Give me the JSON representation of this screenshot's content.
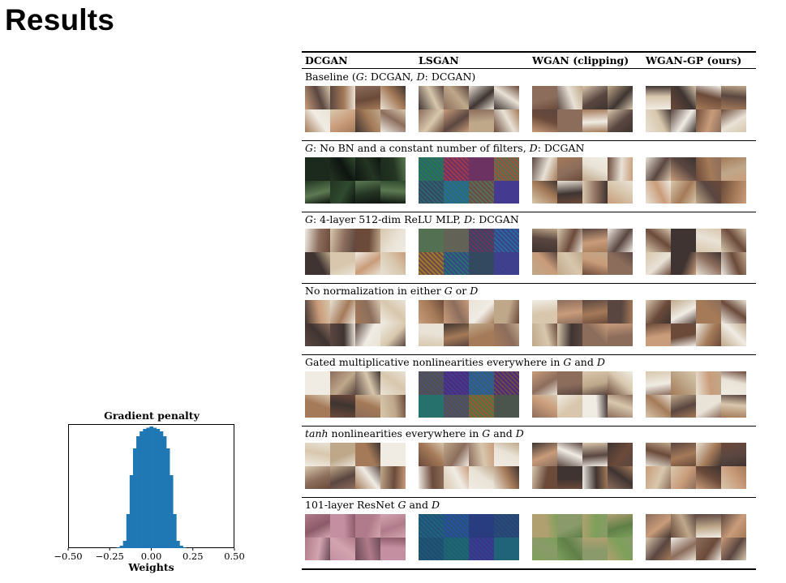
{
  "slide": {
    "title": "Results"
  },
  "histogram": {
    "title": "Gradient penalty",
    "xlabel": "Weights",
    "tick_labels": [
      "−0.50",
      "−0.25",
      "0.00",
      "0.25",
      "0.50"
    ],
    "color": "#1f77b4"
  },
  "chart_data": {
    "type": "bar",
    "title": "Gradient penalty",
    "xlabel": "Weights",
    "ylabel": "",
    "xlim": [
      -0.5,
      0.5
    ],
    "xticks": [
      -0.5,
      -0.25,
      0.0,
      0.25,
      0.5
    ],
    "bin_centers": [
      -0.2,
      -0.18,
      -0.16,
      -0.14,
      -0.12,
      -0.1,
      -0.08,
      -0.06,
      -0.04,
      -0.02,
      0.0,
      0.02,
      0.04,
      0.06,
      0.08,
      0.1,
      0.12,
      0.14,
      0.16,
      0.18,
      0.2
    ],
    "values": [
      0.005,
      0.02,
      0.06,
      0.28,
      0.6,
      0.82,
      0.92,
      0.96,
      0.98,
      0.99,
      1.0,
      0.99,
      0.98,
      0.96,
      0.92,
      0.82,
      0.6,
      0.28,
      0.06,
      0.02,
      0.005
    ]
  },
  "table": {
    "columns": [
      "DCGAN",
      "LSGAN",
      "WGAN (clipping)",
      "WGAN-GP (ours)"
    ],
    "rows": [
      {
        "caption": "Baseline (G: DCGAN, D: DCGAN)",
        "caption_parts": [
          "Baseline (",
          "G",
          ": DCGAN, ",
          "D",
          ": DCGAN)"
        ],
        "samples": [
          "bedrooms",
          "bedrooms",
          "bedrooms",
          "bedrooms"
        ]
      },
      {
        "caption": "G: No BN and a constant number of filters, D: DCGAN",
        "caption_parts": [
          "",
          "G",
          ": No BN and a constant number of filters, ",
          "D",
          ": DCGAN"
        ],
        "samples": [
          "collapsed-dark",
          "noise",
          "bedrooms",
          "bedrooms"
        ]
      },
      {
        "caption": "G: 4-layer 512-dim ReLU MLP, D: DCGAN",
        "caption_parts": [
          "",
          "G",
          ": 4-layer 512-dim ReLU MLP, ",
          "D",
          ": DCGAN"
        ],
        "samples": [
          "bedrooms",
          "noise",
          "bedrooms",
          "bedrooms"
        ]
      },
      {
        "caption": "No normalization in either G or D",
        "caption_parts": [
          "No normalization in either ",
          "G",
          " or ",
          "D",
          ""
        ],
        "samples": [
          "bedrooms",
          "bedrooms",
          "bedrooms",
          "bedrooms"
        ]
      },
      {
        "caption": "Gated multiplicative nonlinearities everywhere in G and D",
        "caption_parts": [
          "Gated multiplicative nonlinearities everywhere in ",
          "G",
          " and ",
          "D",
          ""
        ],
        "samples": [
          "bedrooms",
          "noise",
          "bedrooms",
          "bedrooms"
        ]
      },
      {
        "caption": "tanh nonlinearities everywhere in G and D",
        "caption_parts": [
          "",
          "tanh",
          " nonlinearities everywhere in ",
          "G",
          " and ",
          "D",
          ""
        ],
        "samples": [
          "bedrooms",
          "bedrooms",
          "bedrooms",
          "bedrooms"
        ]
      },
      {
        "caption": "101-layer ResNet G and D",
        "caption_parts": [
          "101-layer ResNet ",
          "G",
          " and ",
          "D",
          ""
        ],
        "samples": [
          "pink-pattern",
          "blue-noise",
          "green-pattern",
          "bedrooms"
        ]
      }
    ]
  }
}
